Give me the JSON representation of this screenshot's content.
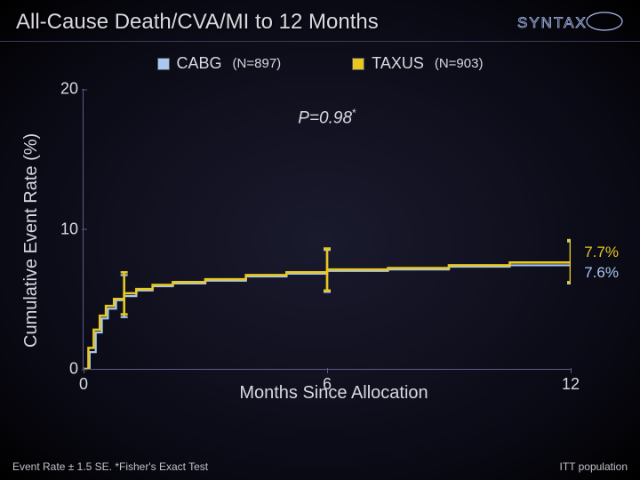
{
  "title": "All-Cause Death/CVA/MI to 12 Months",
  "logo": {
    "text": "SYNTAX",
    "stroke_color": "#aabbee",
    "ring_color": "#aabbee"
  },
  "legend": {
    "cabg": {
      "label": "CABG",
      "n": "(N=897)",
      "color": "#a8c8f0"
    },
    "taxus": {
      "label": "TAXUS",
      "n": "(N=903)",
      "color": "#e8c820"
    }
  },
  "chart": {
    "type": "kaplan-meier-step",
    "ylabel": "Cumulative Event Rate (%)",
    "xlabel": "Months Since Allocation",
    "ylim": [
      0,
      20
    ],
    "yticks": [
      0,
      10,
      20
    ],
    "xlim": [
      0,
      12
    ],
    "xticks": [
      0,
      6,
      12
    ],
    "pvalue": "P=0.98",
    "pvalue_marker": "*",
    "axis_color": "#5a5a88",
    "background": "transparent",
    "tick_fontsize": 18,
    "label_fontsize": 20,
    "series": {
      "cabg": {
        "color": "#a8c8f0",
        "line_width": 2.2,
        "end_label": "7.6%",
        "end_label_color": "#a8c8f0",
        "points": [
          [
            0,
            0
          ],
          [
            0.15,
            1.2
          ],
          [
            0.3,
            2.6
          ],
          [
            0.45,
            3.6
          ],
          [
            0.6,
            4.3
          ],
          [
            0.8,
            4.9
          ],
          [
            1.0,
            5.2
          ],
          [
            1.3,
            5.6
          ],
          [
            1.7,
            5.9
          ],
          [
            2.2,
            6.1
          ],
          [
            3.0,
            6.3
          ],
          [
            4.0,
            6.6
          ],
          [
            5.0,
            6.8
          ],
          [
            6.0,
            7.0
          ],
          [
            7.5,
            7.1
          ],
          [
            9.0,
            7.3
          ],
          [
            10.5,
            7.4
          ],
          [
            12.0,
            7.6
          ]
        ],
        "error_bars_at": [
          1.0,
          6.0,
          12.0
        ],
        "error_se": 1.5
      },
      "taxus": {
        "color": "#e8c820",
        "line_width": 2.6,
        "end_label": "7.7%",
        "end_label_color": "#e8c820",
        "points": [
          [
            0,
            0
          ],
          [
            0.12,
            1.5
          ],
          [
            0.25,
            2.8
          ],
          [
            0.4,
            3.8
          ],
          [
            0.55,
            4.5
          ],
          [
            0.75,
            5.0
          ],
          [
            1.0,
            5.4
          ],
          [
            1.3,
            5.7
          ],
          [
            1.7,
            6.0
          ],
          [
            2.2,
            6.2
          ],
          [
            3.0,
            6.4
          ],
          [
            4.0,
            6.7
          ],
          [
            5.0,
            6.9
          ],
          [
            6.0,
            7.1
          ],
          [
            7.5,
            7.2
          ],
          [
            9.0,
            7.4
          ],
          [
            10.5,
            7.6
          ],
          [
            12.0,
            7.7
          ]
        ],
        "error_bars_at": [
          1.0,
          6.0,
          12.0
        ],
        "error_se": 1.5
      }
    }
  },
  "footnotes": {
    "left": "Event Rate ± 1.5 SE. *Fisher's Exact Test",
    "right": "ITT population"
  }
}
